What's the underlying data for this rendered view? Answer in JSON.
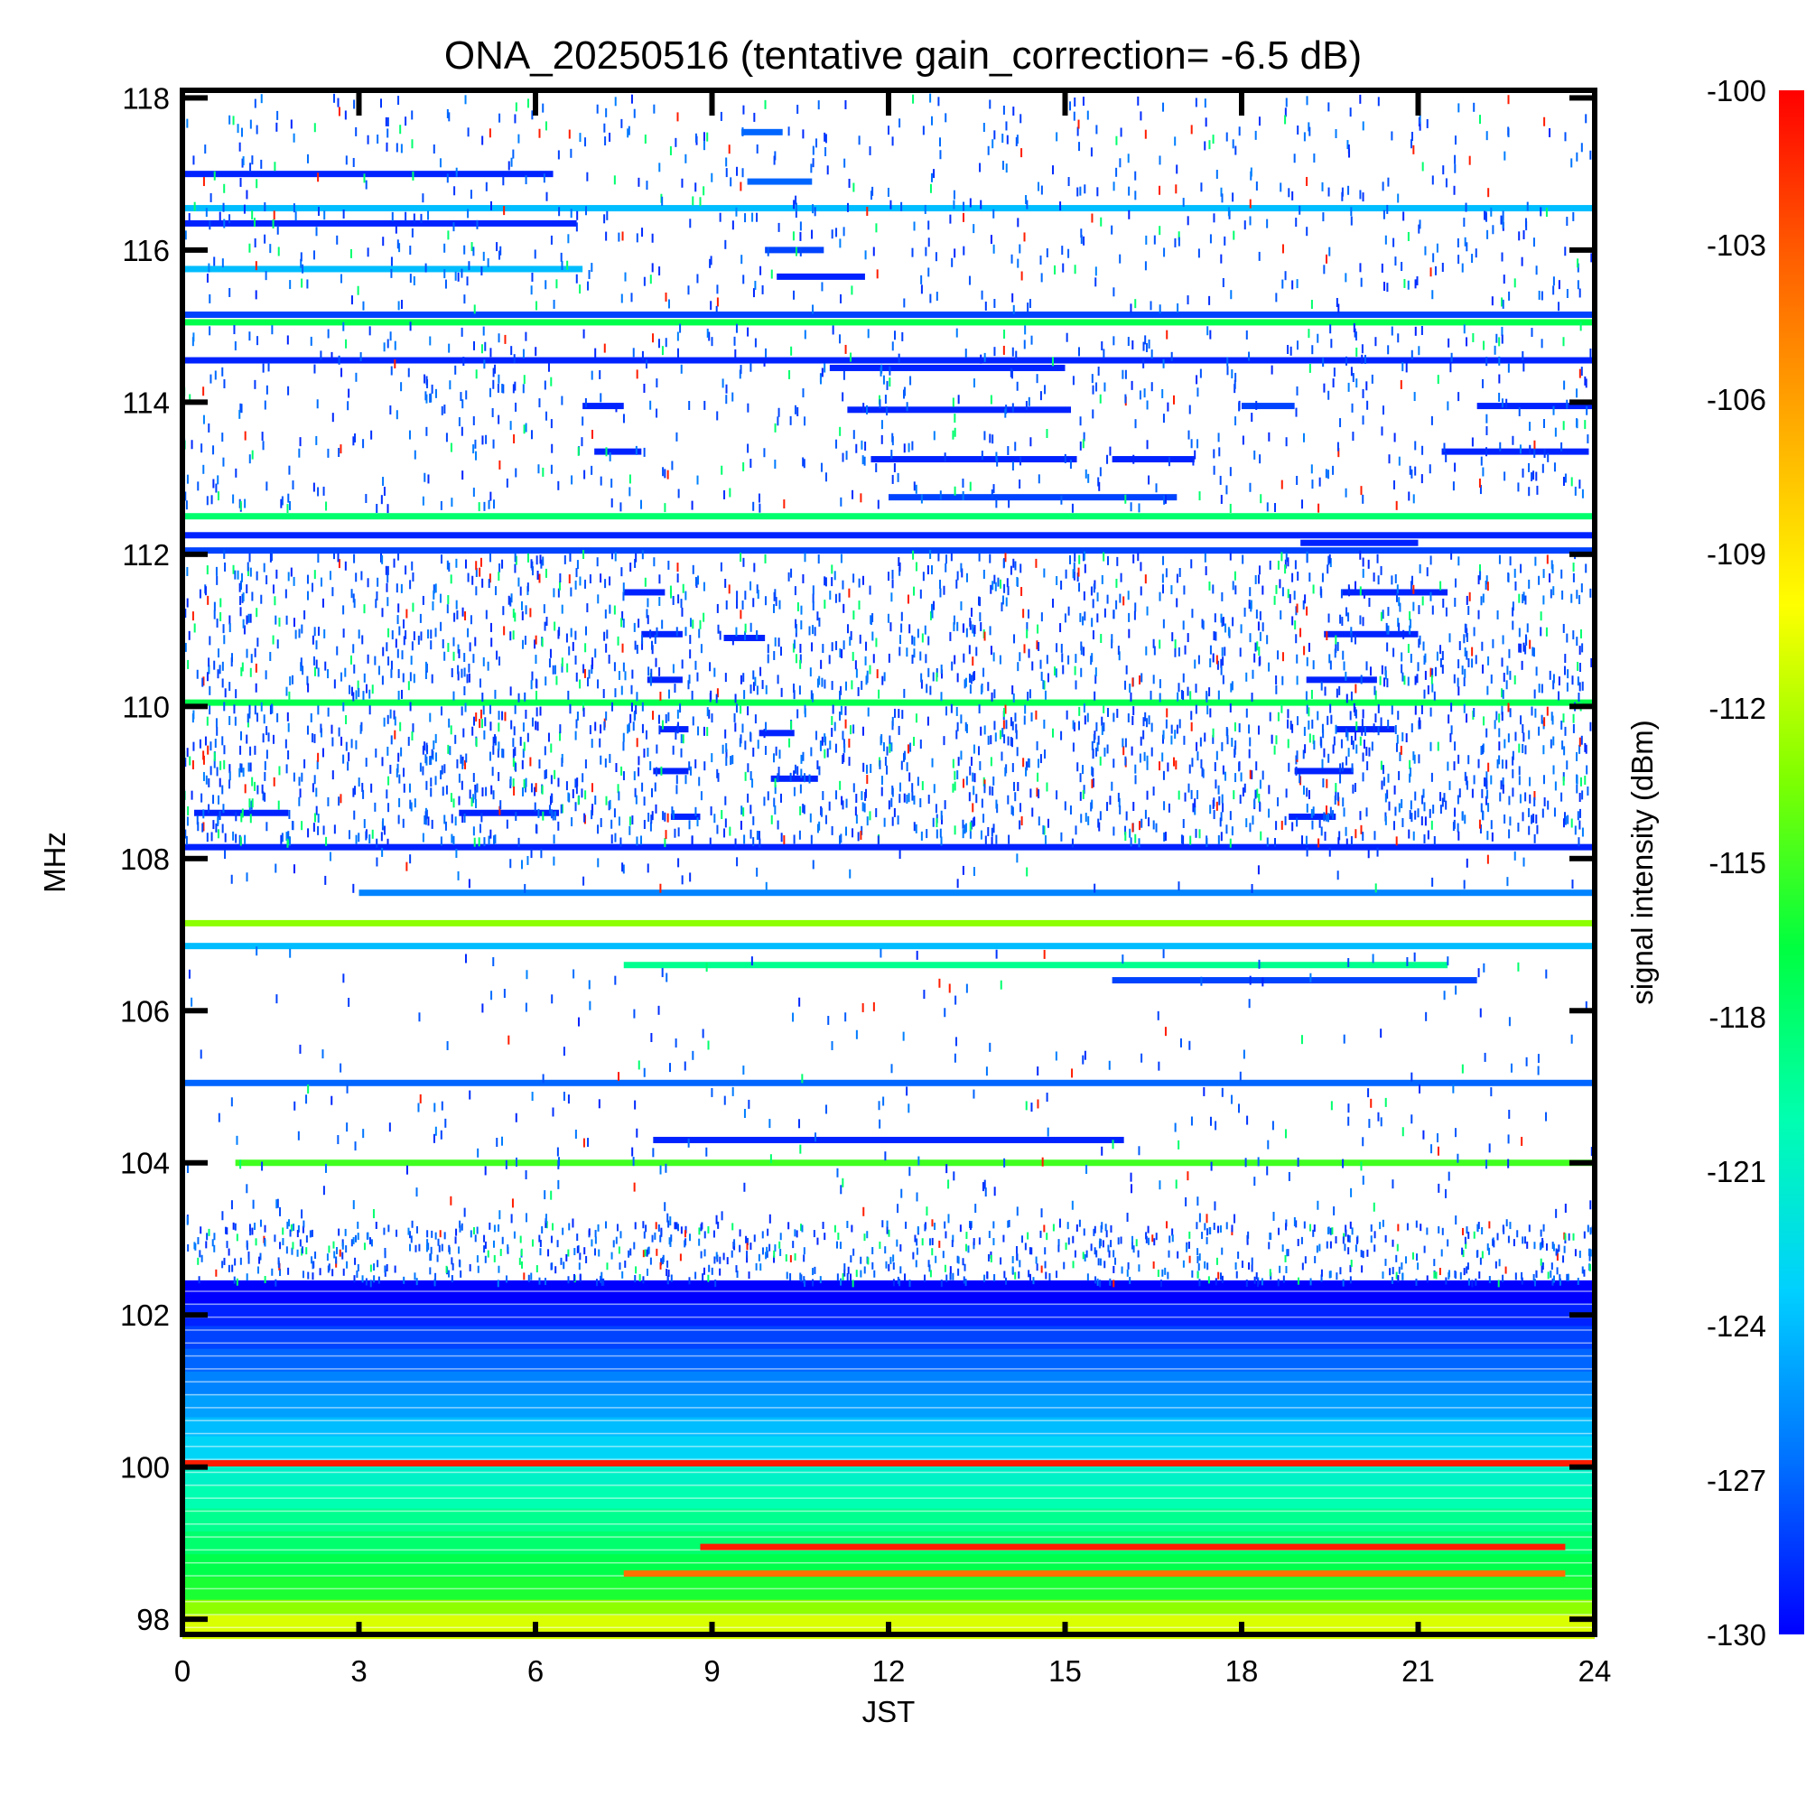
{
  "chart_data": {
    "type": "heatmap",
    "title": "ONA_20250516 (tentative gain_correction= -6.5 dB)",
    "xlabel": "JST",
    "ylabel": "MHz",
    "colorbar_label": "signal intensity (dBm)",
    "xlim": [
      0,
      24
    ],
    "ylim": [
      97.8,
      118.1
    ],
    "clim": [
      -130,
      -100
    ],
    "x_ticks": [
      "0",
      "3",
      "6",
      "9",
      "12",
      "15",
      "18",
      "21",
      "24"
    ],
    "y_ticks": [
      "98",
      "100",
      "102",
      "104",
      "106",
      "108",
      "110",
      "112",
      "114",
      "116",
      "118"
    ],
    "colorbar_ticks": [
      "-100",
      "-103",
      "-106",
      "-109",
      "-112",
      "-115",
      "-118",
      "-121",
      "-124",
      "-127",
      "-130"
    ],
    "colormap": [
      "#0000ff",
      "#0070ff",
      "#00d0ff",
      "#00ffb0",
      "#00ff40",
      "#80ff00",
      "#ffff00",
      "#ffb000",
      "#ff6000",
      "#ff0000"
    ],
    "background": "#ffffff",
    "continuous_bands": [
      {
        "freq_mhz": 116.55,
        "x_start": 0,
        "x_end": 24,
        "dbm": -124
      },
      {
        "freq_mhz": 116.35,
        "x_start": 0,
        "x_end": 6.7,
        "dbm": -129
      },
      {
        "freq_mhz": 115.75,
        "x_start": 0,
        "x_end": 6.8,
        "dbm": -124
      },
      {
        "freq_mhz": 115.15,
        "x_start": 0,
        "x_end": 24,
        "dbm": -128
      },
      {
        "freq_mhz": 115.05,
        "x_start": 0,
        "x_end": 24,
        "dbm": -117
      },
      {
        "freq_mhz": 114.55,
        "x_start": 0,
        "x_end": 24,
        "dbm": -129
      },
      {
        "freq_mhz": 112.5,
        "x_start": 0,
        "x_end": 24,
        "dbm": -118
      },
      {
        "freq_mhz": 112.25,
        "x_start": 0,
        "x_end": 24,
        "dbm": -129
      },
      {
        "freq_mhz": 112.05,
        "x_start": 0,
        "x_end": 24,
        "dbm": -128
      },
      {
        "freq_mhz": 110.05,
        "x_start": 0,
        "x_end": 24,
        "dbm": -117
      },
      {
        "freq_mhz": 108.15,
        "x_start": 0,
        "x_end": 24,
        "dbm": -129
      },
      {
        "freq_mhz": 107.55,
        "x_start": 3,
        "x_end": 24,
        "dbm": -126
      },
      {
        "freq_mhz": 107.15,
        "x_start": 0,
        "x_end": 24,
        "dbm": -113
      },
      {
        "freq_mhz": 106.85,
        "x_start": 0,
        "x_end": 24,
        "dbm": -124
      },
      {
        "freq_mhz": 105.05,
        "x_start": 0,
        "x_end": 24,
        "dbm": -127
      },
      {
        "freq_mhz": 100.05,
        "x_start": 0,
        "x_end": 24,
        "dbm": -101
      }
    ],
    "broadband_rows": [
      {
        "freq_mhz": 102.3,
        "dbm": -130
      },
      {
        "freq_mhz": 102.0,
        "dbm": -129
      },
      {
        "freq_mhz": 101.7,
        "dbm": -128
      },
      {
        "freq_mhz": 101.4,
        "dbm": -127
      },
      {
        "freq_mhz": 101.1,
        "dbm": -126
      },
      {
        "freq_mhz": 100.8,
        "dbm": -125
      },
      {
        "freq_mhz": 100.5,
        "dbm": -124
      },
      {
        "freq_mhz": 100.25,
        "dbm": -123
      },
      {
        "freq_mhz": 99.9,
        "dbm": -121
      },
      {
        "freq_mhz": 99.6,
        "dbm": -120
      },
      {
        "freq_mhz": 99.3,
        "dbm": -119
      },
      {
        "freq_mhz": 99.0,
        "dbm": -118
      },
      {
        "freq_mhz": 98.7,
        "dbm": -117
      },
      {
        "freq_mhz": 98.4,
        "dbm": -116
      },
      {
        "freq_mhz": 98.1,
        "dbm": -113
      },
      {
        "freq_mhz": 97.9,
        "dbm": -111
      }
    ],
    "intermittent_segments": [
      {
        "freq_mhz": 117.55,
        "x_start": 9.5,
        "x_end": 10.2,
        "dbm": -127
      },
      {
        "freq_mhz": 117.0,
        "x_start": 0,
        "x_end": 6.3,
        "dbm": -129
      },
      {
        "freq_mhz": 116.9,
        "x_start": 9.6,
        "x_end": 10.7,
        "dbm": -127
      },
      {
        "freq_mhz": 116.0,
        "x_start": 9.9,
        "x_end": 10.9,
        "dbm": -128
      },
      {
        "freq_mhz": 115.65,
        "x_start": 10.1,
        "x_end": 11.6,
        "dbm": -129
      },
      {
        "freq_mhz": 114.45,
        "x_start": 11.0,
        "x_end": 15.0,
        "dbm": -129
      },
      {
        "freq_mhz": 113.95,
        "x_start": 6.8,
        "x_end": 7.5,
        "dbm": -129
      },
      {
        "freq_mhz": 113.95,
        "x_start": 18.0,
        "x_end": 18.9,
        "dbm": -128
      },
      {
        "freq_mhz": 113.95,
        "x_start": 22.0,
        "x_end": 24,
        "dbm": -129
      },
      {
        "freq_mhz": 113.9,
        "x_start": 11.3,
        "x_end": 15.1,
        "dbm": -129
      },
      {
        "freq_mhz": 113.35,
        "x_start": 7.0,
        "x_end": 7.8,
        "dbm": -129
      },
      {
        "freq_mhz": 113.35,
        "x_start": 21.4,
        "x_end": 23.9,
        "dbm": -129
      },
      {
        "freq_mhz": 113.25,
        "x_start": 11.7,
        "x_end": 15.2,
        "dbm": -129
      },
      {
        "freq_mhz": 113.25,
        "x_start": 15.8,
        "x_end": 17.2,
        "dbm": -129
      },
      {
        "freq_mhz": 112.75,
        "x_start": 12.0,
        "x_end": 16.9,
        "dbm": -128
      },
      {
        "freq_mhz": 112.15,
        "x_start": 19.0,
        "x_end": 21.0,
        "dbm": -129
      },
      {
        "freq_mhz": 111.5,
        "x_start": 7.5,
        "x_end": 8.2,
        "dbm": -129
      },
      {
        "freq_mhz": 111.5,
        "x_start": 19.7,
        "x_end": 21.5,
        "dbm": -129
      },
      {
        "freq_mhz": 110.95,
        "x_start": 7.8,
        "x_end": 8.5,
        "dbm": -129
      },
      {
        "freq_mhz": 110.95,
        "x_start": 19.4,
        "x_end": 21.0,
        "dbm": -129
      },
      {
        "freq_mhz": 110.9,
        "x_start": 9.2,
        "x_end": 9.9,
        "dbm": -129
      },
      {
        "freq_mhz": 110.35,
        "x_start": 7.9,
        "x_end": 8.5,
        "dbm": -129
      },
      {
        "freq_mhz": 110.35,
        "x_start": 19.1,
        "x_end": 20.3,
        "dbm": -129
      },
      {
        "freq_mhz": 109.7,
        "x_start": 8.1,
        "x_end": 8.6,
        "dbm": -129
      },
      {
        "freq_mhz": 109.7,
        "x_start": 19.6,
        "x_end": 20.6,
        "dbm": -129
      },
      {
        "freq_mhz": 109.65,
        "x_start": 9.8,
        "x_end": 10.4,
        "dbm": -129
      },
      {
        "freq_mhz": 109.15,
        "x_start": 8.0,
        "x_end": 8.6,
        "dbm": -129
      },
      {
        "freq_mhz": 109.15,
        "x_start": 18.9,
        "x_end": 19.9,
        "dbm": -129
      },
      {
        "freq_mhz": 109.05,
        "x_start": 10.0,
        "x_end": 10.8,
        "dbm": -129
      },
      {
        "freq_mhz": 108.6,
        "x_start": 0.2,
        "x_end": 1.8,
        "dbm": -129
      },
      {
        "freq_mhz": 108.6,
        "x_start": 4.7,
        "x_end": 6.4,
        "dbm": -129
      },
      {
        "freq_mhz": 108.55,
        "x_start": 8.3,
        "x_end": 8.8,
        "dbm": -129
      },
      {
        "freq_mhz": 108.55,
        "x_start": 18.8,
        "x_end": 19.6,
        "dbm": -129
      },
      {
        "freq_mhz": 106.6,
        "x_start": 7.5,
        "x_end": 21.5,
        "dbm": -119
      },
      {
        "freq_mhz": 106.4,
        "x_start": 15.8,
        "x_end": 22.0,
        "dbm": -128
      },
      {
        "freq_mhz": 104.3,
        "x_start": 8.0,
        "x_end": 16.0,
        "dbm": -129
      },
      {
        "freq_mhz": 104.0,
        "x_start": 0.9,
        "x_end": 24,
        "dbm": -115
      },
      {
        "freq_mhz": 98.95,
        "x_start": 8.8,
        "x_end": 23.5,
        "dbm": -101
      },
      {
        "freq_mhz": 98.6,
        "x_start": 7.5,
        "x_end": 23.5,
        "dbm": -104
      }
    ]
  }
}
